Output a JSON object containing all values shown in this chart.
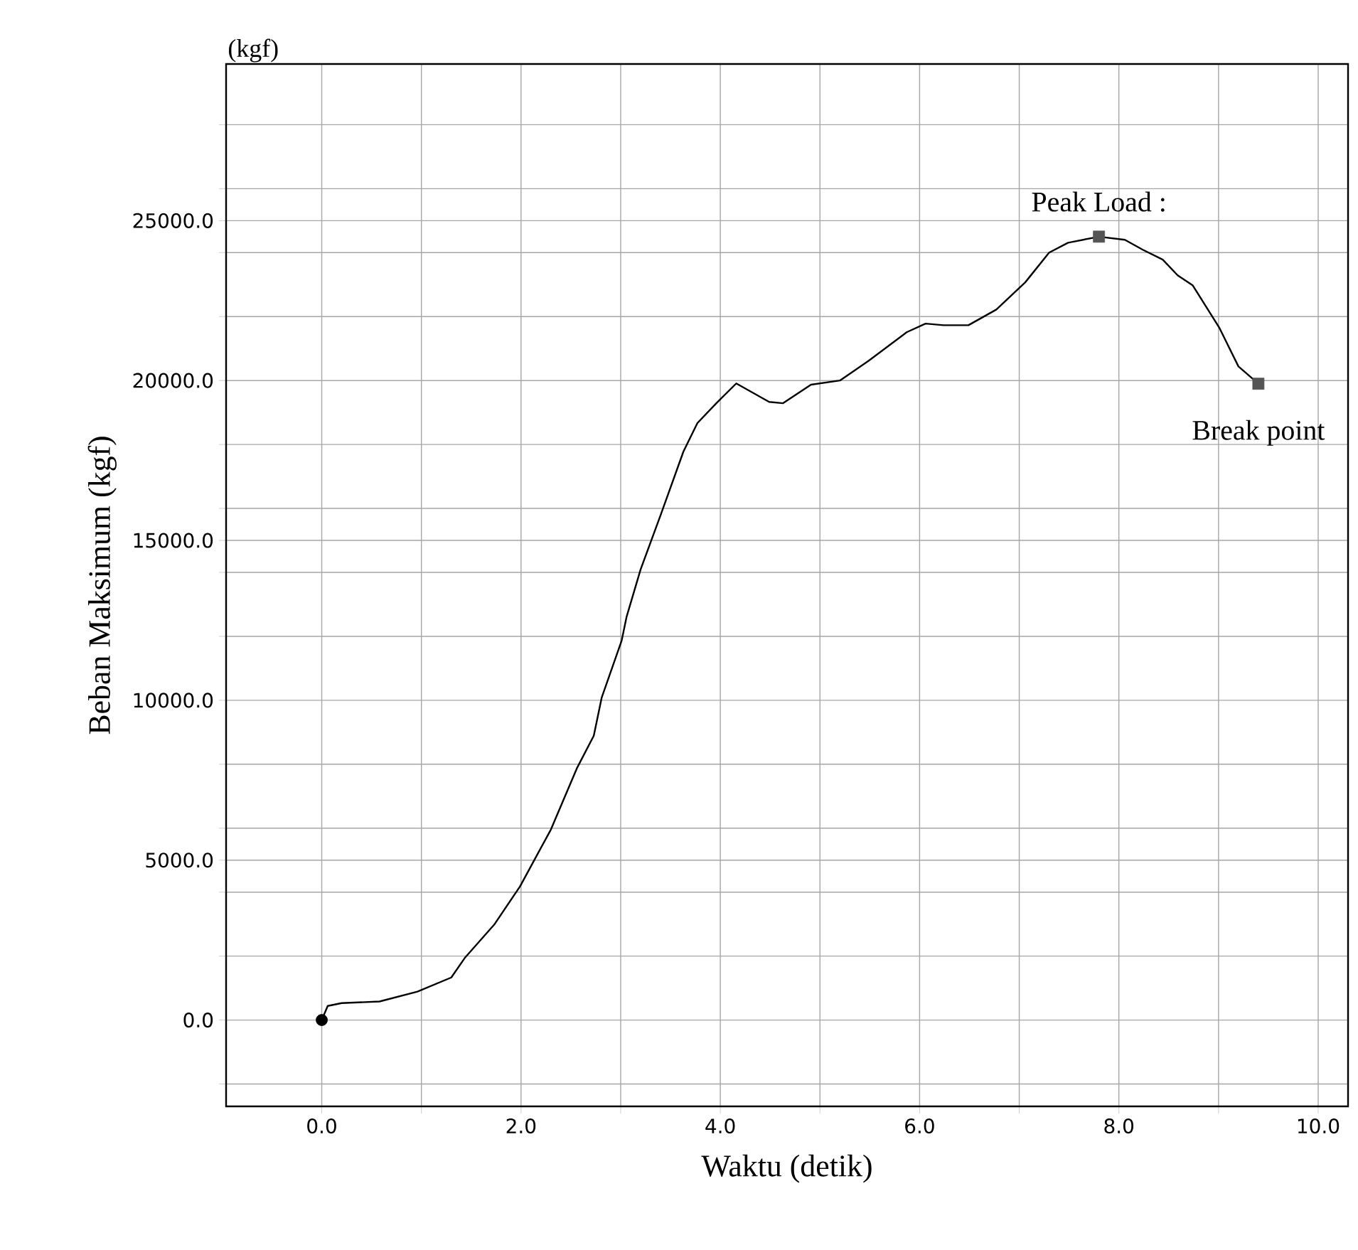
{
  "chart_data": {
    "type": "line",
    "xlabel": "Waktu (detik)",
    "ylabel": "Beban Maksimum (kgf)",
    "xlim": [
      -0.96,
      10.3
    ],
    "ylim": [
      -2700,
      29900
    ],
    "xticks": [
      {
        "value": 0,
        "label": "0.0"
      },
      {
        "value": 1,
        "label": null
      },
      {
        "value": 2,
        "label": "2.0"
      },
      {
        "value": 3,
        "label": null
      },
      {
        "value": 4,
        "label": "4.0"
      },
      {
        "value": 5,
        "label": null
      },
      {
        "value": 6,
        "label": "6.0"
      },
      {
        "value": 7,
        "label": null
      },
      {
        "value": 8,
        "label": "8.0"
      },
      {
        "value": 9,
        "label": null
      },
      {
        "value": 10,
        "label": "10.0"
      }
    ],
    "yticks": [
      {
        "value": -2000,
        "label": null
      },
      {
        "value": 0,
        "label": "0.0"
      },
      {
        "value": 2000,
        "label": null
      },
      {
        "value": 4000,
        "label": null
      },
      {
        "value": 5000,
        "label": "5000.0"
      },
      {
        "value": 6000,
        "label": null
      },
      {
        "value": 8000,
        "label": null
      },
      {
        "value": 10000,
        "label": "10000.0"
      },
      {
        "value": 12000,
        "label": null
      },
      {
        "value": 14000,
        "label": null
      },
      {
        "value": 15000,
        "label": "15000.0"
      },
      {
        "value": 16000,
        "label": null
      },
      {
        "value": 18000,
        "label": null
      },
      {
        "value": 20000,
        "label": "20000.0"
      },
      {
        "value": 22000,
        "label": null
      },
      {
        "value": 24000,
        "label": null
      },
      {
        "value": 25000,
        "label": "25000.0"
      },
      {
        "value": 26000,
        "label": null
      },
      {
        "value": 28000,
        "label": null
      }
    ],
    "grid": true,
    "annotations": [
      "(kgf)",
      {
        "text": "Peak Load :",
        "x": 7.8,
        "y": 24500
      },
      {
        "text": "Break point",
        "x": 9.4,
        "y": 19900
      }
    ],
    "series": [
      {
        "type": "line",
        "color": "#000000",
        "marker": "none",
        "line_style": "solid",
        "x": [
          0,
          0.06,
          0.2,
          0.58,
          0.96,
          1.3,
          1.44,
          1.73,
          1.99,
          2.3,
          2.56,
          2.73,
          2.81,
          3.01,
          3.06,
          3.2,
          3.41,
          3.63,
          3.77,
          3.96,
          4.16,
          4.49,
          4.63,
          4.91,
          5.2,
          5.49,
          5.87,
          6.06,
          6.24,
          6.49,
          6.77,
          7.06,
          7.3,
          7.49,
          7.8,
          8.06,
          8.24,
          8.44,
          8.59,
          8.74,
          9.01,
          9.2,
          9.4
        ],
        "values": [
          0,
          440,
          530,
          580,
          890,
          1330,
          1960,
          2980,
          4180,
          5960,
          7870,
          8890,
          10090,
          11870,
          12620,
          14090,
          15870,
          17780,
          18670,
          19290,
          19910,
          19330,
          19290,
          19870,
          20000,
          20620,
          21510,
          21780,
          21730,
          21730,
          22220,
          23070,
          24000,
          24310,
          24500,
          24400,
          24090,
          23780,
          23290,
          22980,
          21640,
          20440,
          19900
        ]
      },
      {
        "type": "scatter",
        "color": "#000000",
        "marker": "circle",
        "x": [
          0
        ],
        "values": [
          0
        ]
      },
      {
        "type": "scatter",
        "color": "#555555",
        "marker": "square",
        "x": [
          7.8,
          9.4
        ],
        "values": [
          24500,
          19900
        ]
      }
    ]
  }
}
